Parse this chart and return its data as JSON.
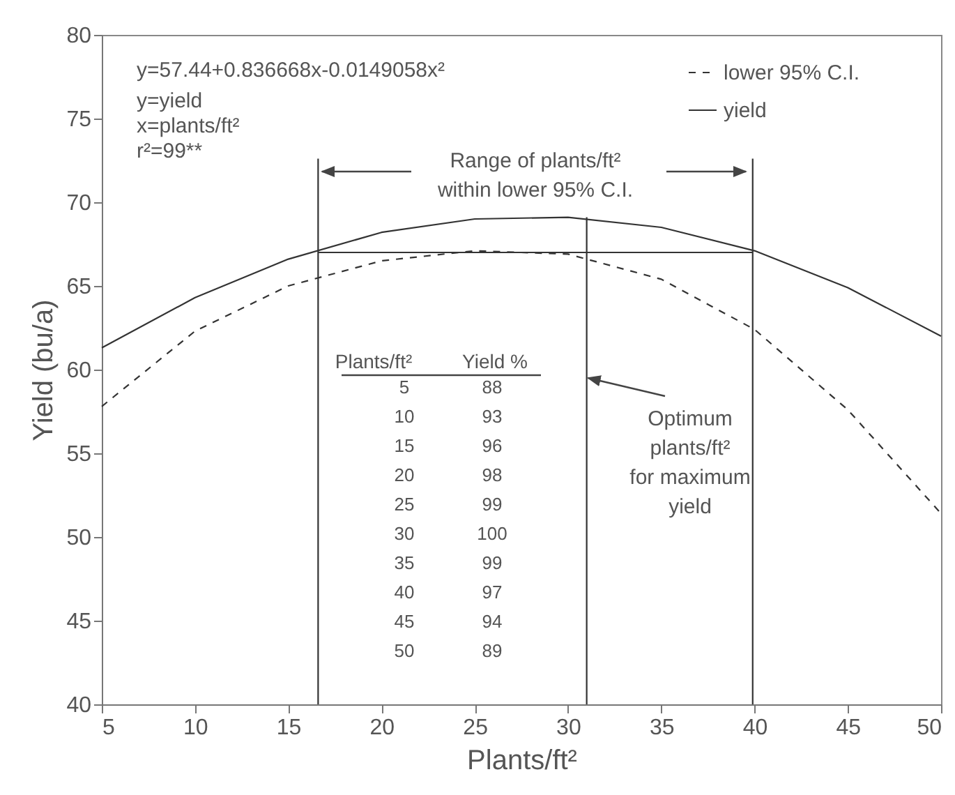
{
  "chart_data": {
    "type": "line",
    "xlabel": "Plants/ft²",
    "ylabel": "Yield (bu/a)",
    "x": [
      5,
      10,
      15,
      20,
      25,
      30,
      35,
      40,
      45,
      50
    ],
    "series": [
      {
        "name": "lower 95% C.I.",
        "color": "#333333",
        "line_style": "dashed",
        "values": [
          57.8,
          62.3,
          65.0,
          66.5,
          67.1,
          66.9,
          65.4,
          62.4,
          57.6,
          51.4
        ]
      },
      {
        "name": "yield",
        "color": "#333333",
        "line_style": "solid",
        "values": [
          61.3,
          64.3,
          66.6,
          68.2,
          69.0,
          69.1,
          68.5,
          67.1,
          64.9,
          62.0
        ]
      },
      {
        "type": "line",
        "color": "#333333",
        "line_style": "solid",
        "x": [
          16.6,
          39.9
        ],
        "values": [
          67,
          67
        ]
      },
      {
        "type": "line",
        "color": "#333333",
        "line_style": "solid",
        "x": [
          16.6,
          16.6
        ],
        "values": [
          40,
          72.6
        ]
      },
      {
        "type": "line",
        "color": "#333333",
        "line_style": "solid",
        "x": [
          31,
          31
        ],
        "values": [
          40,
          69.1
        ]
      },
      {
        "type": "line",
        "color": "#333333",
        "line_style": "solid",
        "x": [
          39.9,
          39.9
        ],
        "values": [
          40,
          72.6
        ]
      }
    ],
    "xlim": [
      5,
      50
    ],
    "ylim": [
      40,
      80
    ],
    "xticks": [
      5,
      10,
      15,
      20,
      25,
      30,
      35,
      40,
      45,
      50
    ],
    "yticks": [
      40,
      45,
      50,
      55,
      60,
      65,
      70,
      75,
      80
    ],
    "grid": false,
    "legend": "top right",
    "annotations": [
      "y=57.44+0.836668x-0.0149058x²",
      "y=yield",
      "x=plants/ft²",
      "r²=99**",
      "Range of plants/ft²\nwithin lower 95% C.I.",
      {
        "text": "Optimum\nplants/ft²\nfor maximum\nyield",
        "x": 31,
        "y": 59.5
      },
      "Plants/ft²",
      "Yield %",
      "5",
      "88",
      "10",
      "93",
      "15",
      "96",
      "20",
      "98",
      "25",
      "99",
      "30",
      "100",
      "35",
      "99",
      "40",
      "97",
      "45",
      "94",
      "50",
      "89"
    ]
  }
}
